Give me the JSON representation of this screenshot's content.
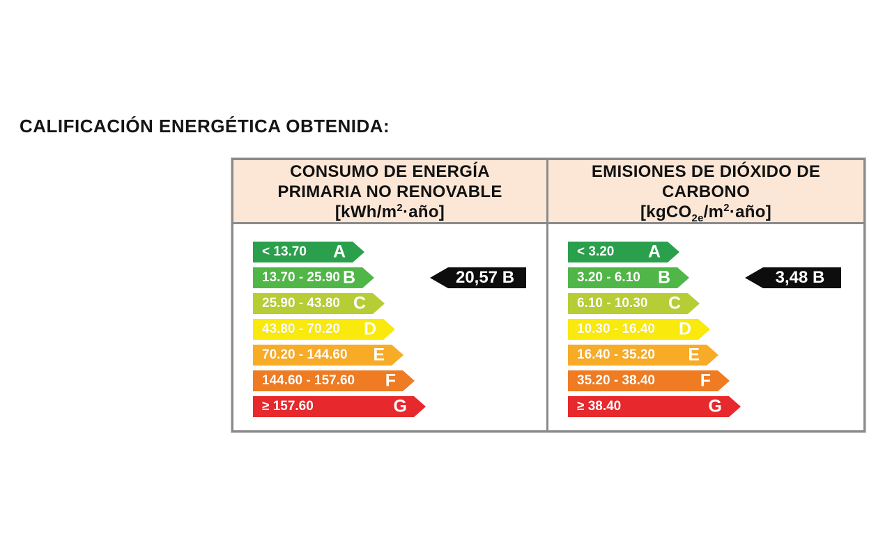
{
  "page": {
    "title": "CALIFICACIÓN ENERGÉTICA OBTENIDA:"
  },
  "colors": {
    "table_border": "#8a8a8a",
    "header_bg": "#fce6d5",
    "value_arrow_bg": "#0d0d0d",
    "arrow_text": "#ffffff"
  },
  "panels": [
    {
      "id": "consumo-energia-primaria",
      "header_lines": [
        "CONSUMO DE ENERGÍA",
        "PRIMARIA NO RENOVABLE"
      ],
      "unit": {
        "open": "[kWh/m",
        "sup": "2",
        "close": "·año]"
      },
      "rows": [
        {
          "letter": "A",
          "range": "< 13.70",
          "color_hex": "#2aa04d"
        },
        {
          "letter": "B",
          "range": "13.70 - 25.90",
          "color_hex": "#50b648"
        },
        {
          "letter": "C",
          "range": "25.90 - 43.80",
          "color_hex": "#b7cd35"
        },
        {
          "letter": "D",
          "range": "43.80 - 70.20",
          "color_hex": "#f9e90c"
        },
        {
          "letter": "E",
          "range": "70.20 - 144.60",
          "color_hex": "#f7ab26"
        },
        {
          "letter": "F",
          "range": "144.60 - 157.60",
          "color_hex": "#ef7b22"
        },
        {
          "letter": "G",
          "range": "≥ 157.60",
          "color_hex": "#e7282c"
        }
      ],
      "value_label": "20,57 B",
      "obtained_rating": "B"
    },
    {
      "id": "emisiones-co2",
      "header_lines": [
        "EMISIONES DE DIÓXIDO DE",
        "CARBONO"
      ],
      "unit": {
        "open": "[kgCO",
        "sub": "2e",
        "mid": "/m",
        "sup": "2",
        "close": "·año]"
      },
      "rows": [
        {
          "letter": "A",
          "range": "< 3.20",
          "color_hex": "#2aa04d"
        },
        {
          "letter": "B",
          "range": "3.20 - 6.10",
          "color_hex": "#50b648"
        },
        {
          "letter": "C",
          "range": "6.10 - 10.30",
          "color_hex": "#b7cd35"
        },
        {
          "letter": "D",
          "range": "10.30 - 16.40",
          "color_hex": "#f9e90c"
        },
        {
          "letter": "E",
          "range": "16.40 - 35.20",
          "color_hex": "#f7ab26"
        },
        {
          "letter": "F",
          "range": "35.20 - 38.40",
          "color_hex": "#ef7b22"
        },
        {
          "letter": "G",
          "range": "≥ 38.40",
          "color_hex": "#e7282c"
        }
      ],
      "value_label": "3,48 B",
      "obtained_rating": "B"
    }
  ]
}
